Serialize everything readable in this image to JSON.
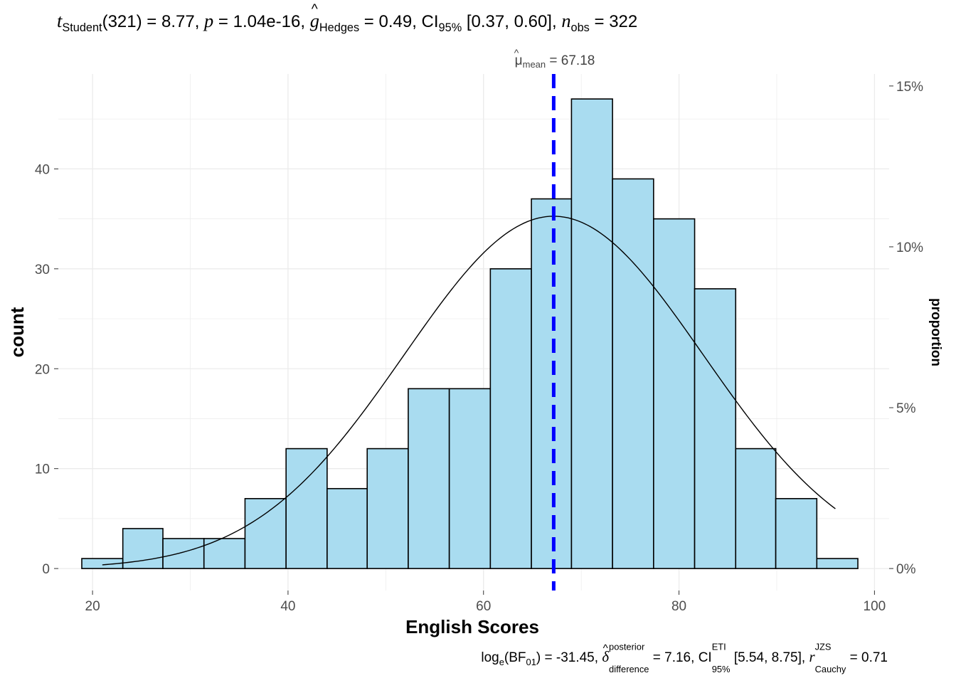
{
  "title": {
    "stat_name": "t",
    "stat_sub": "Student",
    "df": "(321)",
    "t_value": "8.77",
    "p_label": "p",
    "p_value": "1.04e-16",
    "effsize_symbol": "g",
    "effsize_sub": "Hedges",
    "effsize_value": "0.49",
    "ci_label": "CI",
    "ci_sub": "95%",
    "ci_value": "[0.37, 0.60]",
    "n_label": "n",
    "n_sub": "obs",
    "n_value": "322"
  },
  "caption": {
    "bf_label": "log",
    "bf_sub": "e",
    "bf_inner": "BF",
    "bf_inner_sub": "01",
    "bf_value": "-31.45",
    "delta_symbol": "δ",
    "delta_sup": "posterior",
    "delta_sub": "difference",
    "delta_value": "7.16",
    "ci_label": "CI",
    "ci_sup": "ETI",
    "ci_sub": "95%",
    "ci_value": "[5.54, 8.75]",
    "r_label": "r",
    "r_sup": "JZS",
    "r_sub": "Cauchy",
    "r_value": "0.71"
  },
  "mean_label": {
    "symbol": "μ",
    "sub": "mean",
    "value": "67.18"
  },
  "chart_data": {
    "type": "bar",
    "subtype": "histogram",
    "xlabel": "English Scores",
    "ylabel": "count",
    "ylabel_right": "proportion",
    "xlim": [
      16.5,
      101.5
    ],
    "ylim": [
      -2.2,
      49.5
    ],
    "x_ticks": [
      20,
      40,
      60,
      80,
      100
    ],
    "y_ticks": [
      0,
      10,
      20,
      30,
      40
    ],
    "y_right_ticks": [
      "0%",
      "5%",
      "10%",
      "15%"
    ],
    "y_right_tick_values": [
      0,
      0.05,
      0.1,
      0.15
    ],
    "n_obs": 322,
    "bins": [
      {
        "start": 18.9,
        "end": 23.1,
        "count": 1
      },
      {
        "start": 23.1,
        "end": 27.2,
        "count": 4
      },
      {
        "start": 27.2,
        "end": 31.4,
        "count": 3
      },
      {
        "start": 31.4,
        "end": 35.6,
        "count": 3
      },
      {
        "start": 35.6,
        "end": 39.8,
        "count": 7
      },
      {
        "start": 39.8,
        "end": 44.0,
        "count": 12
      },
      {
        "start": 44.0,
        "end": 48.1,
        "count": 8
      },
      {
        "start": 48.1,
        "end": 52.3,
        "count": 12
      },
      {
        "start": 52.3,
        "end": 56.5,
        "count": 18
      },
      {
        "start": 56.5,
        "end": 60.7,
        "count": 18
      },
      {
        "start": 60.7,
        "end": 64.9,
        "count": 30
      },
      {
        "start": 64.9,
        "end": 69.0,
        "count": 37
      },
      {
        "start": 69.0,
        "end": 73.2,
        "count": 47
      },
      {
        "start": 73.2,
        "end": 77.4,
        "count": 39
      },
      {
        "start": 77.4,
        "end": 81.6,
        "count": 35
      },
      {
        "start": 81.6,
        "end": 85.8,
        "count": 28
      },
      {
        "start": 85.8,
        "end": 89.9,
        "count": 12
      },
      {
        "start": 89.9,
        "end": 94.1,
        "count": 7
      },
      {
        "start": 94.1,
        "end": 98.3,
        "count": 1
      }
    ],
    "mean": 67.18,
    "normal_curve": {
      "mean": 67.18,
      "sd": 15.3,
      "x_range": [
        21,
        96
      ]
    },
    "colors": {
      "bar_fill": "#a9dcf0",
      "bar_stroke": "#000000",
      "mean_line": "#0000ff",
      "grid": "#ebebeb"
    },
    "grid": true
  }
}
